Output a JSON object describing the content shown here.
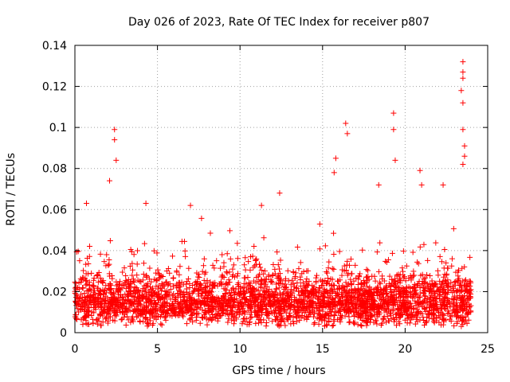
{
  "chart_data": {
    "type": "scatter",
    "title": "Day 026 of 2023, Rate Of TEC Index for receiver p807",
    "xlabel": "GPS time / hours",
    "ylabel": "ROTI / TECUs",
    "xlim": [
      0,
      25
    ],
    "ylim": [
      0,
      0.14
    ],
    "xticks": [
      0,
      5,
      10,
      15,
      20,
      25
    ],
    "xtick_labels": [
      "0",
      "5",
      "10",
      "15",
      "20",
      "25"
    ],
    "yticks": [
      0,
      0.02,
      0.04,
      0.06,
      0.08,
      0.1,
      0.12,
      0.14
    ],
    "ytick_labels": [
      "0",
      "0.02",
      "0.04",
      "0.06",
      "0.08",
      "0.1",
      "0.12",
      "0.14"
    ],
    "grid": true,
    "marker": "+",
    "series_color": "#ff0000",
    "notable_points": [
      {
        "x": 2.4,
        "y": 0.099
      },
      {
        "x": 2.4,
        "y": 0.094
      },
      {
        "x": 2.5,
        "y": 0.084
      },
      {
        "x": 2.1,
        "y": 0.074
      },
      {
        "x": 0.7,
        "y": 0.063
      },
      {
        "x": 4.3,
        "y": 0.063
      },
      {
        "x": 7.0,
        "y": 0.062
      },
      {
        "x": 11.3,
        "y": 0.062
      },
      {
        "x": 12.4,
        "y": 0.068
      },
      {
        "x": 15.8,
        "y": 0.085
      },
      {
        "x": 15.7,
        "y": 0.078
      },
      {
        "x": 16.4,
        "y": 0.102
      },
      {
        "x": 16.5,
        "y": 0.097
      },
      {
        "x": 18.4,
        "y": 0.072
      },
      {
        "x": 19.3,
        "y": 0.107
      },
      {
        "x": 19.3,
        "y": 0.099
      },
      {
        "x": 19.4,
        "y": 0.084
      },
      {
        "x": 20.9,
        "y": 0.079
      },
      {
        "x": 21.0,
        "y": 0.072
      },
      {
        "x": 22.3,
        "y": 0.072
      },
      {
        "x": 23.5,
        "y": 0.132
      },
      {
        "x": 23.5,
        "y": 0.127
      },
      {
        "x": 23.5,
        "y": 0.124
      },
      {
        "x": 23.4,
        "y": 0.118
      },
      {
        "x": 23.5,
        "y": 0.112
      },
      {
        "x": 23.5,
        "y": 0.099
      },
      {
        "x": 23.6,
        "y": 0.091
      },
      {
        "x": 23.6,
        "y": 0.086
      },
      {
        "x": 23.5,
        "y": 0.082
      }
    ],
    "bulk_distribution": {
      "description_bands": [
        {
          "x_from": 0.0,
          "x_to": 24.0,
          "y_typical": 0.015,
          "y_spread": 0.006
        }
      ],
      "seed": 26,
      "count": 3200
    }
  }
}
